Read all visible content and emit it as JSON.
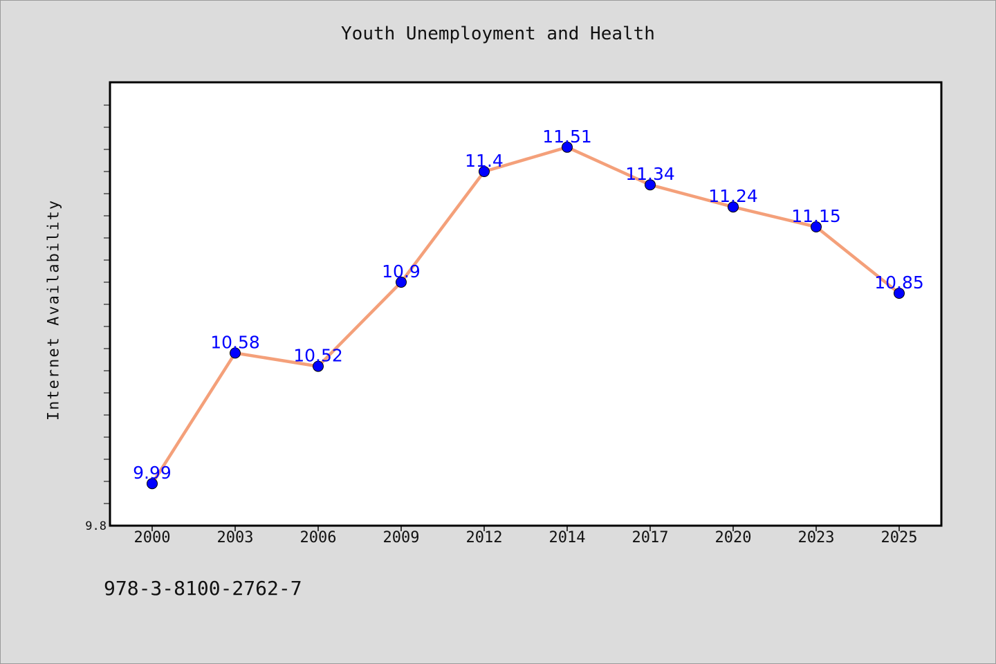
{
  "chart_data": {
    "type": "line",
    "title": "Youth Unemployment and Health",
    "xlabel": "",
    "ylabel": "Internet Availability",
    "categories": [
      "2000",
      "2003",
      "2006",
      "2009",
      "2012",
      "2014",
      "2017",
      "2020",
      "2023",
      "2025"
    ],
    "series": [
      {
        "values": [
          9.99,
          10.58,
          10.52,
          10.9,
          11.4,
          11.51,
          11.34,
          11.24,
          11.15,
          10.85
        ],
        "data_labels": [
          "9.99",
          "10.58",
          "10.52",
          "10.9",
          "11.4",
          "11.51",
          "11.34",
          "11.24",
          "11.15",
          "10.85"
        ],
        "line_color": "#f4a07a",
        "marker_color": "#0000ff"
      }
    ],
    "ylim": [
      9.8,
      11.8
    ],
    "yticks": [
      9.8
    ],
    "ytick_labels": [
      "9.8"
    ],
    "grid": false,
    "legend": "none"
  },
  "footer": {
    "code": "978-3-8100-2762-7"
  },
  "colors": {
    "background": "#dcdcdc",
    "plot_area": "#ffffff",
    "label": "#0000ff"
  }
}
